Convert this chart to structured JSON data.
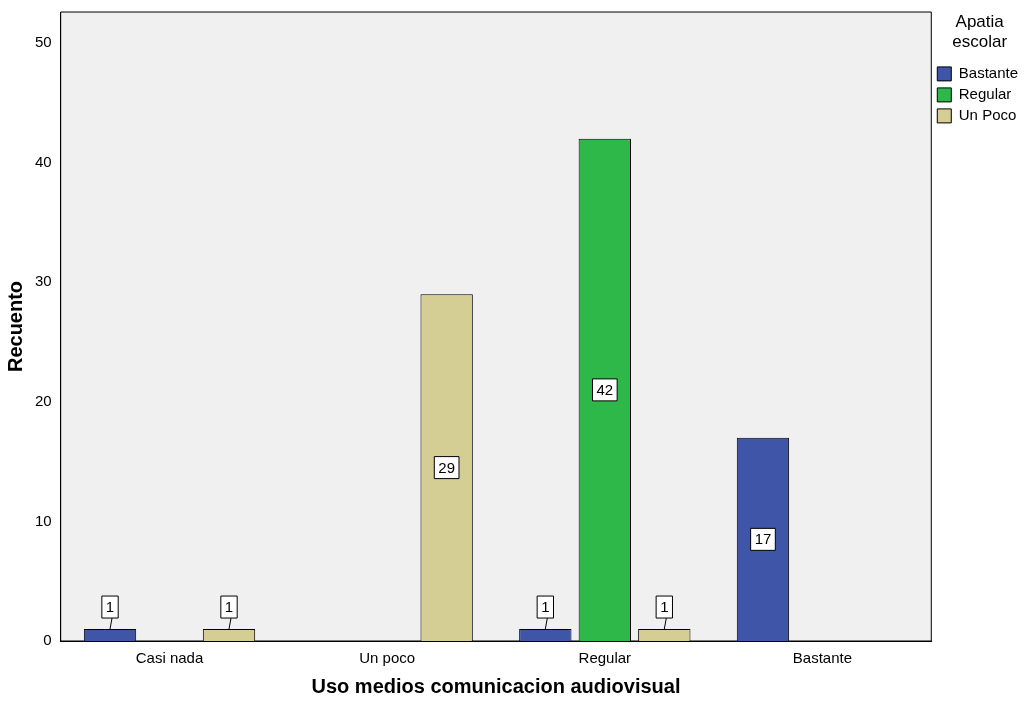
{
  "chart_data": {
    "type": "bar",
    "xlabel": "Uso medios comunicacion audiovisual",
    "ylabel": "Recuento",
    "legend_title": "Apatia escolar",
    "categories": [
      "Casi nada",
      "Un poco",
      "Regular",
      "Bastante"
    ],
    "series": [
      {
        "name": "Bastante",
        "color": "#3f55a8",
        "values": [
          1,
          null,
          1,
          17
        ]
      },
      {
        "name": "Regular",
        "color": "#2fb84a",
        "values": [
          null,
          null,
          42,
          null
        ]
      },
      {
        "name": "Un Poco",
        "color": "#d4cd94",
        "values": [
          1,
          29,
          1,
          null
        ]
      }
    ],
    "ylim": [
      0,
      52.6
    ],
    "yticks": [
      0,
      10,
      20,
      30,
      40,
      50
    ],
    "grid": false,
    "legend": "top right",
    "data_labels": true
  }
}
